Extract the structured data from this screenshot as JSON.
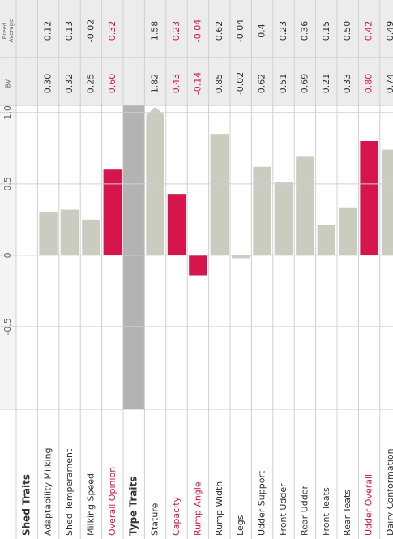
{
  "chart_data": {
    "type": "bar",
    "bv_header": "BV",
    "breed_header": "Breed Average",
    "xlim": [
      -1.08,
      1.05
    ],
    "xticks": [
      -0.5,
      0,
      0.5,
      {
        "value": 1,
        "label": "1.0"
      }
    ],
    "color": "#c9ccbf",
    "highlight_color": "#d5154b",
    "sections": [
      {
        "title": "Shed Traits",
        "categories": [
          "Adaptability Milking",
          "Shed Temperament",
          "Milking Speed",
          "Overall Opinion"
        ],
        "values": [
          0.3,
          0.32,
          0.25,
          0.6
        ],
        "value_labels": [
          "0.30",
          "0.32",
          "0.25",
          "0.60"
        ],
        "breed_average": [
          0.12,
          0.13,
          -0.02,
          0.32
        ],
        "highlighted": [
          3
        ]
      },
      {
        "title": "Type Traits",
        "categories": [
          "Stature",
          "Capacity",
          "Rump Angle",
          "Rump Width",
          "Legs",
          "Udder Support",
          "Front Udder",
          "Rear Udder",
          "Front Teats",
          "Rear Teats",
          "Udder Overall",
          "Dairy Conformation"
        ],
        "values": [
          1.82,
          0.43,
          -0.14,
          0.85,
          -0.02,
          0.62,
          0.51,
          0.69,
          0.21,
          0.33,
          0.8,
          0.74
        ],
        "value_labels": [
          "1.82",
          "0.43",
          "-0.14",
          "0.85",
          "-0.02",
          "0.62",
          "0.51",
          "0.69",
          "0.21",
          "0.33",
          "0.80",
          "0.74"
        ],
        "breed_average": [
          1.58,
          0.23,
          -0.04,
          0.62,
          -0.04,
          0.4,
          0.23,
          0.36,
          0.15,
          0.5,
          0.42,
          0.49
        ],
        "breed_average_labels": [
          "1.58",
          "0.23",
          "-0.04",
          "0.62",
          "-0.04",
          "0.4",
          "0.23",
          "0.36",
          "0.15",
          "0.50",
          "0.42",
          "0.49"
        ],
        "highlighted": [
          1,
          2,
          10
        ]
      }
    ]
  }
}
